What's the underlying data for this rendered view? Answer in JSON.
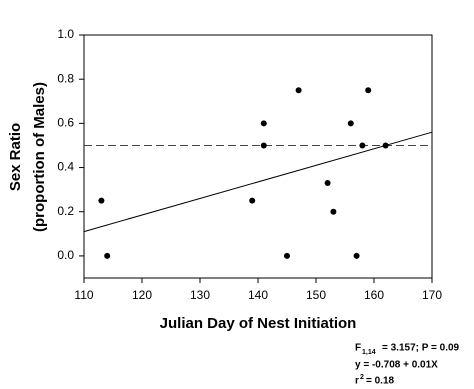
{
  "chart_data": {
    "type": "scatter",
    "x_label": "Julian Day of Nest Initiation",
    "y_label": [
      "Sex Ratio",
      "(proportion of Males)"
    ],
    "x": [
      113,
      114,
      139,
      141,
      141,
      145,
      147,
      152,
      153,
      156,
      157,
      158,
      159,
      162
    ],
    "series": [
      {
        "color": "#000000",
        "values": [
          0.25,
          0,
          0.25,
          0.6,
          0.5,
          0,
          0.75,
          0.33,
          0.2,
          0.6,
          0,
          0.5,
          0.75,
          0.5
        ]
      }
    ],
    "xlim": [
      110,
      170
    ],
    "ylim": [
      -0.1,
      1.0
    ],
    "xticks": [
      110,
      120,
      130,
      140,
      150,
      160,
      170
    ],
    "yticks": [
      {
        "value": 0,
        "label": "0.0"
      },
      0.2,
      0.4,
      0.6,
      0.8,
      {
        "value": 1,
        "label": "1.0"
      }
    ],
    "fit_line": {
      "x": [
        110,
        170
      ],
      "y": [
        0.11,
        0.56
      ]
    },
    "reference_line": 0.5,
    "annotations": {
      "stat_symbol": "F",
      "stat_subscript": "1,14",
      "stat_text": "= 3.157; P = 0.09",
      "equation": "y = -0.708 + 0.01X",
      "r_symbol": "r",
      "r_superscript": "2",
      "r_text": "= 0.18"
    }
  }
}
